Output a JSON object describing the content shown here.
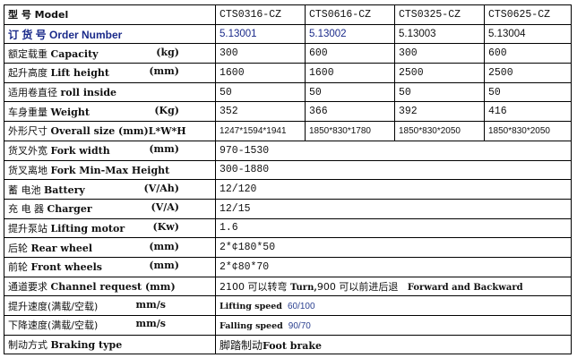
{
  "header": {
    "label": "型    号 Model",
    "models": [
      "CTS0316-CZ",
      "CTS0616-CZ",
      "CTS0325-CZ",
      "CTS0625-CZ"
    ]
  },
  "order": {
    "label": "订 货 号 Order Number",
    "values": [
      "5.13001",
      "5.13002",
      "5.13003",
      "5.13004"
    ]
  },
  "rows": [
    {
      "label_cn": "额定载重",
      "label_en": "Capacity",
      "unit": "(kg)",
      "values": [
        "300",
        "600",
        "300",
        "600"
      ]
    },
    {
      "label_cn": "起升高度",
      "label_en": "Lift height",
      "unit": "(mm)",
      "values": [
        "1600",
        "1600",
        "2500",
        "2500"
      ]
    },
    {
      "label_cn": "适用卷直径",
      "label_en": "roll inside",
      "unit": "",
      "values": [
        "50",
        "50",
        "50",
        "50"
      ]
    },
    {
      "label_cn": "车身重量",
      "label_en": "Weight",
      "unit": "(Kg)",
      "values": [
        "352",
        "366",
        "392",
        "416"
      ]
    },
    {
      "label_cn": "外形尺寸",
      "label_en": "Overall size (mm)L*W*H",
      "unit": "",
      "values": [
        "1247*1594*1941",
        "1850*830*1780",
        "1850*830*2050",
        "1850*830*2050"
      ]
    }
  ],
  "merged_rows": [
    {
      "label_cn": "货叉外宽",
      "label_en": "Fork width",
      "unit": "(mm)",
      "value": "970-1530"
    },
    {
      "label_cn": "货叉离地",
      "label_en": "Fork Min-Max Height",
      "unit": "",
      "value": "300-1880"
    },
    {
      "label_cn": "蓄  电池",
      "label_en": "Battery",
      "unit": "(V/Ah)",
      "value": "12/120"
    },
    {
      "label_cn": "充 电 器",
      "label_en": "Charger",
      "unit": "(V/A)",
      "value": "12/15"
    },
    {
      "label_cn": "提升泵站",
      "label_en": "Lifting motor",
      "unit": "(Kw)",
      "value": "1.6"
    },
    {
      "label_cn": "后轮",
      "label_en": "Rear wheel",
      "unit": "(mm)",
      "value": "2*¢180*50"
    },
    {
      "label_cn": "前轮",
      "label_en": "Front wheels",
      "unit": "(mm)",
      "value": "2*¢80*70"
    }
  ],
  "channel": {
    "label_cn": "通道要求",
    "label_en": "Channel request (mm)",
    "v1": "2100 可以转弯",
    "v2": "Turn,",
    "v3": "900 可以前进后退",
    "v4": "Forward and Backward"
  },
  "lifting_speed": {
    "label_cn": "提升速度(满载/空载)",
    "unit": "mm/s",
    "name": "Lifting speed",
    "value": "60/100"
  },
  "falling_speed": {
    "label_cn": "下降速度(满载/空载)",
    "unit": "mm/s",
    "name": "Falling speed",
    "value": "90/70"
  },
  "braking": {
    "label_cn": "制动方式",
    "label_en": "Braking type",
    "value_cn": "脚踏制动",
    "value_en": "Foot brake"
  }
}
